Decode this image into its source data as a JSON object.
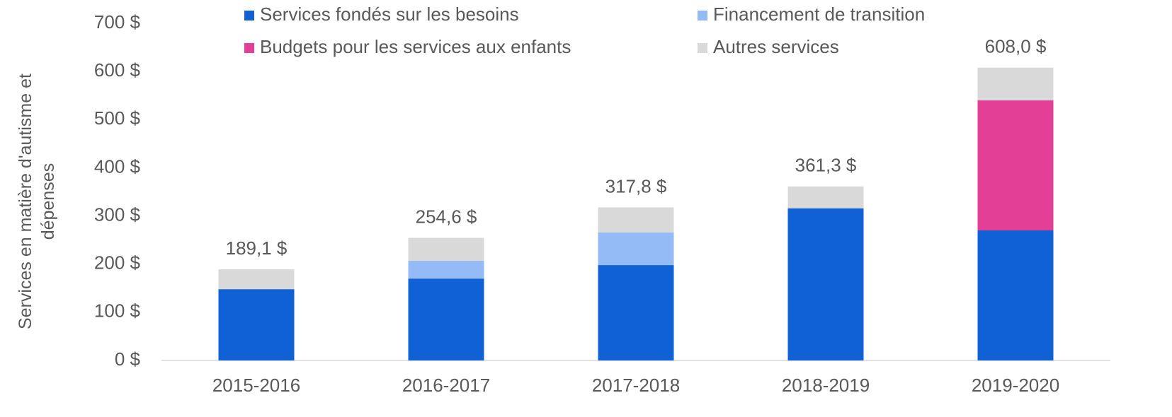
{
  "chart_data": {
    "type": "stacked_bar",
    "y_label": "Services en matière d'autisme et dépenses",
    "categories": [
      "2015-2016",
      "2016-2017",
      "2017-2018",
      "2018-2019",
      "2019-2020"
    ],
    "series": [
      {
        "name": "Services fondés sur les besoins",
        "color": "#1060d6",
        "values": [
          148,
          170,
          198,
          316,
          270
        ]
      },
      {
        "name": "Financement de transition",
        "color": "#94bbf5",
        "values": [
          0,
          37,
          68,
          0,
          0
        ]
      },
      {
        "name": "Budgets pour les services aux enfants",
        "color": "#e43f96",
        "values": [
          0,
          0,
          0,
          0,
          270
        ]
      },
      {
        "name": "Autres services",
        "color": "#d9d9d9",
        "values": [
          41.1,
          47.6,
          51.8,
          45.3,
          68
        ]
      }
    ],
    "totals": [
      189.1,
      254.6,
      317.8,
      361.3,
      608.0
    ],
    "total_labels": [
      "189,1 $",
      "254,6 $",
      "317,8 $",
      "361,3 $",
      "608,0 $"
    ],
    "ylim": [
      0,
      700
    ],
    "yticks": [
      {
        "value": 0,
        "label": "0 $"
      },
      {
        "value": 100,
        "label": "100 $"
      },
      {
        "value": 200,
        "label": "200 $"
      },
      {
        "value": 300,
        "label": "300 $"
      },
      {
        "value": 400,
        "label": "400 $"
      },
      {
        "value": 500,
        "label": "500 $"
      },
      {
        "value": 600,
        "label": "600 $"
      },
      {
        "value": 700,
        "label": "700 $"
      }
    ],
    "grid": false,
    "legend": "top"
  }
}
